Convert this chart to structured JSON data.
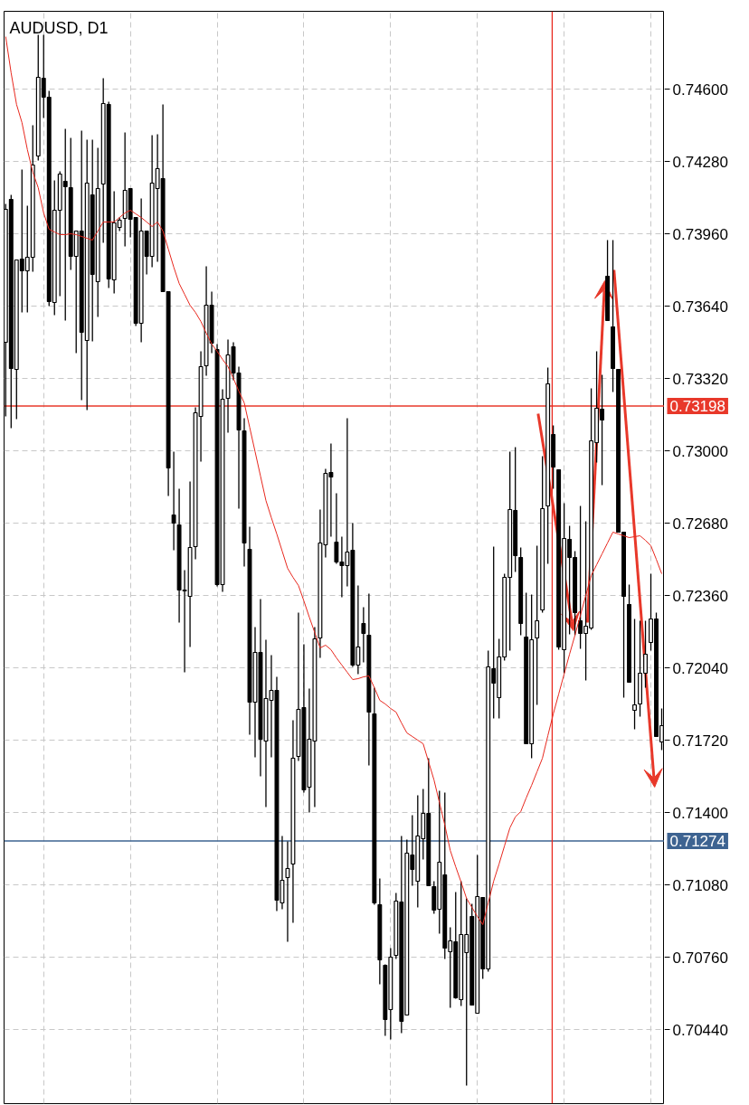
{
  "chart_data": {
    "type": "candlestick",
    "title": "AUDUSD, D1",
    "categories": [
      null,
      null,
      null,
      null,
      null,
      null,
      null,
      null,
      null,
      null,
      null,
      null,
      null,
      null,
      null,
      null,
      null,
      null,
      null,
      null,
      null,
      null,
      null,
      null,
      null,
      null,
      null,
      null,
      null,
      null,
      null,
      null,
      null,
      null,
      null,
      null,
      null,
      null,
      null,
      null,
      null,
      null,
      null,
      null,
      null,
      null,
      null,
      null,
      null,
      null,
      null,
      null,
      null,
      null,
      null,
      null,
      null,
      null,
      null,
      null,
      null,
      null,
      null,
      null,
      null,
      null,
      null,
      null,
      null,
      null,
      null,
      null,
      null,
      null,
      null,
      null,
      null,
      null,
      null,
      null,
      null,
      null,
      null,
      null,
      null,
      null,
      null,
      null,
      null,
      null,
      null,
      null,
      null,
      null,
      null,
      null,
      null,
      null,
      null,
      null,
      null,
      null,
      null,
      null,
      null,
      null,
      null,
      null,
      null,
      null,
      null,
      null,
      null,
      null,
      null,
      null,
      null,
      null,
      null,
      null,
      null,
      null
    ],
    "ohlc": [
      [
        0.7348,
        0.74092,
        0.73152,
        0.74068
      ],
      [
        0.74112,
        0.74132,
        0.731,
        0.73364
      ],
      [
        0.7336,
        0.73844,
        0.7314,
        0.73844
      ],
      [
        0.73848,
        0.74244,
        0.73612,
        0.73796
      ],
      [
        0.73796,
        0.74084,
        0.73612,
        0.73856
      ],
      [
        0.73856,
        0.7444,
        0.73792,
        0.74264
      ],
      [
        0.74304,
        0.7484,
        0.74284,
        0.74652
      ],
      [
        0.74648,
        0.7484,
        0.74472,
        0.74564
      ],
      [
        0.74564,
        0.74592,
        0.7364,
        0.7366
      ],
      [
        0.73656,
        0.74196,
        0.736,
        0.74064
      ],
      [
        0.74064,
        0.74236,
        0.73684,
        0.74224
      ],
      [
        0.74192,
        0.74424,
        0.73576,
        0.74168
      ],
      [
        0.74164,
        0.74384,
        0.738,
        0.7386
      ],
      [
        0.7386,
        0.73972,
        0.73432,
        0.73972
      ],
      [
        0.73972,
        0.74416,
        0.73224,
        0.73524
      ],
      [
        0.73488,
        0.74376,
        0.7318,
        0.74184
      ],
      [
        0.74132,
        0.74376,
        0.73484,
        0.7378
      ],
      [
        0.73748,
        0.7434,
        0.73592,
        0.7416
      ],
      [
        0.7418,
        0.74648,
        0.7392,
        0.74536
      ],
      [
        0.74532,
        0.74544,
        0.7372,
        0.7376
      ],
      [
        0.73756,
        0.74148,
        0.73696,
        0.74008
      ],
      [
        0.73988,
        0.74032,
        0.73972,
        0.7402
      ],
      [
        0.74028,
        0.74408,
        0.73904,
        0.74152
      ],
      [
        0.7416,
        0.7416,
        0.73944,
        0.74024
      ],
      [
        0.74032,
        0.74032,
        0.73552,
        0.73564
      ],
      [
        0.73564,
        0.74116,
        0.7348,
        0.73972
      ],
      [
        0.73972,
        0.73972,
        0.7378,
        0.7386
      ],
      [
        0.7386,
        0.74396,
        0.73812,
        0.74184
      ],
      [
        0.7416,
        0.744,
        0.73836,
        0.74248
      ],
      [
        0.74204,
        0.74532,
        0.73704,
        0.73704
      ],
      [
        0.73704,
        0.73704,
        0.728,
        0.72924
      ],
      [
        0.72716,
        0.72996,
        0.7256,
        0.7268
      ],
      [
        0.72672,
        0.72832,
        0.7224,
        0.72384
      ],
      [
        0.72384,
        0.72472,
        0.7202,
        0.7238
      ],
      [
        0.72356,
        0.72864,
        0.72132,
        0.72572
      ],
      [
        0.72576,
        0.73192,
        0.7252,
        0.73168
      ],
      [
        0.73152,
        0.7344,
        0.72952,
        0.73372
      ],
      [
        0.73376,
        0.73816,
        0.73332,
        0.73644
      ],
      [
        0.73644,
        0.73704,
        0.73432,
        0.73476
      ],
      [
        0.73448,
        0.73472,
        0.724,
        0.72408
      ],
      [
        0.72408,
        0.73272,
        0.72376,
        0.73228
      ],
      [
        0.73232,
        0.73492,
        0.7308,
        0.73424
      ],
      [
        0.7346,
        0.7348,
        0.73312,
        0.73344
      ],
      [
        0.73344,
        0.73372,
        0.72744,
        0.73092
      ],
      [
        0.73088,
        0.73144,
        0.72488,
        0.72592
      ],
      [
        0.72564,
        0.72664,
        0.71744,
        0.71888
      ],
      [
        0.71888,
        0.7222,
        0.71644,
        0.72108
      ],
      [
        0.72108,
        0.72344,
        0.7156,
        0.71724
      ],
      [
        0.71716,
        0.72164,
        0.71424,
        0.71904
      ],
      [
        0.71896,
        0.72096,
        0.71644,
        0.7194
      ],
      [
        0.7194,
        0.72,
        0.70964,
        0.71012
      ],
      [
        0.71,
        0.71296,
        0.70972,
        0.711
      ],
      [
        0.71112,
        0.71272,
        0.70828,
        0.71152
      ],
      [
        0.71172,
        0.71808,
        0.70912,
        0.7164
      ],
      [
        0.71648,
        0.72284,
        0.71628,
        0.71856
      ],
      [
        0.71864,
        0.72144,
        0.71488,
        0.715
      ],
      [
        0.71512,
        0.71948,
        0.714,
        0.71724
      ],
      [
        0.71716,
        0.7222,
        0.71424,
        0.72168
      ],
      [
        0.72172,
        0.7274,
        0.72084,
        0.72592
      ],
      [
        0.72584,
        0.7292,
        0.72528,
        0.729
      ],
      [
        0.72904,
        0.73032,
        0.7262,
        0.72884
      ],
      [
        0.72596,
        0.72812,
        0.725,
        0.72508
      ],
      [
        0.72508,
        0.7262,
        0.72352,
        0.72492
      ],
      [
        0.72492,
        0.73144,
        0.724,
        0.72552
      ],
      [
        0.7256,
        0.7268,
        0.72044,
        0.72052
      ],
      [
        0.72052,
        0.72404,
        0.72012,
        0.72132
      ],
      [
        0.72236,
        0.72308,
        0.72064,
        0.72192
      ],
      [
        0.72184,
        0.72368,
        0.71608,
        0.71844
      ],
      [
        0.71836,
        0.71952,
        0.70992,
        0.71
      ],
      [
        0.70992,
        0.71108,
        0.7064,
        0.70748
      ],
      [
        0.70724,
        0.70728,
        0.70412,
        0.70484
      ],
      [
        0.70528,
        0.708,
        0.70396,
        0.7076
      ],
      [
        0.70768,
        0.71044,
        0.70752,
        0.71008
      ],
      [
        0.71004,
        0.71296,
        0.70424,
        0.70476
      ],
      [
        0.70504,
        0.7128,
        0.70504,
        0.7122
      ],
      [
        0.71212,
        0.71388,
        0.71076,
        0.71148
      ],
      [
        0.71096,
        0.71476,
        0.7098,
        0.71296
      ],
      [
        0.71284,
        0.71504,
        0.71192,
        0.71396
      ],
      [
        0.71396,
        0.7164,
        0.71076,
        0.71076
      ],
      [
        0.71072,
        0.71096,
        0.70952,
        0.70968
      ],
      [
        0.70972,
        0.71496,
        0.70864,
        0.7118
      ],
      [
        0.71124,
        0.71488,
        0.70752,
        0.708
      ],
      [
        0.70784,
        0.70892,
        0.70536,
        0.70832
      ],
      [
        0.70828,
        0.71048,
        0.70576,
        0.7058
      ],
      [
        0.70572,
        0.71096,
        0.70544,
        0.7086
      ],
      [
        0.7078,
        0.7102,
        0.70192,
        0.7086
      ],
      [
        0.7094,
        0.70996,
        0.70548,
        0.70548
      ],
      [
        0.70512,
        0.71212,
        0.70512,
        0.71028
      ],
      [
        0.71024,
        0.71024,
        0.70664,
        0.70708
      ],
      [
        0.70708,
        0.72116,
        0.70696,
        0.72044
      ],
      [
        0.72036,
        0.72576,
        0.71816,
        0.71972
      ],
      [
        0.71908,
        0.72168,
        0.71816,
        0.72088
      ],
      [
        0.72088,
        0.72456,
        0.72072,
        0.7244
      ],
      [
        0.7244,
        0.72996,
        0.72116,
        0.7274
      ],
      [
        0.72736,
        0.73016,
        0.72464,
        0.72536
      ],
      [
        0.72528,
        0.72572,
        0.72184,
        0.72236
      ],
      [
        0.72176,
        0.72372,
        0.71704,
        0.71704
      ],
      [
        0.71704,
        0.72364,
        0.7164,
        0.72164
      ],
      [
        0.72172,
        0.7258,
        0.71876,
        0.72248
      ],
      [
        0.72296,
        0.72976,
        0.72284,
        0.72744
      ],
      [
        0.72756,
        0.73368,
        0.725,
        0.73296
      ],
      [
        0.73072,
        0.73112,
        0.72832,
        0.72928
      ],
      [
        0.72916,
        0.72916,
        0.7212,
        0.72132
      ],
      [
        0.7212,
        0.72768,
        0.72016,
        0.72612
      ],
      [
        0.72608,
        0.72668,
        0.72188,
        0.72528
      ],
      [
        0.72528,
        0.72556,
        0.72184,
        0.72284
      ],
      [
        0.72248,
        0.72756,
        0.72124,
        0.72192
      ],
      [
        0.72192,
        0.72688,
        0.71984,
        0.72224
      ],
      [
        0.72216,
        0.73276,
        0.72208,
        0.73044
      ],
      [
        0.73036,
        0.7344,
        0.72948,
        0.73188
      ],
      [
        0.73184,
        0.73336,
        0.72848,
        0.73136
      ],
      [
        0.73772,
        0.73932,
        0.73576,
        0.73576
      ],
      [
        0.73548,
        0.73932,
        0.7326,
        0.73364
      ],
      [
        0.7336,
        0.7336,
        0.7264,
        0.7264
      ],
      [
        0.7264,
        0.7264,
        0.71908,
        0.72356
      ],
      [
        0.7232,
        0.72408,
        0.71976,
        0.71976
      ],
      [
        0.71852,
        0.72256,
        0.71768,
        0.71876
      ],
      [
        0.7188,
        0.72248,
        0.71824,
        0.72016
      ],
      [
        0.72016,
        0.72248,
        0.71952,
        0.721
      ],
      [
        0.72152,
        0.72456,
        0.72116,
        0.72256
      ],
      [
        0.72256,
        0.72284,
        0.71736,
        0.71736
      ],
      [
        0.71712,
        0.7186,
        0.71676,
        0.71784
      ]
    ],
    "series": [
      {
        "type": "line",
        "color": "#e8281e",
        "values": [
          0.74832,
          0.74672,
          0.74532,
          0.74452,
          0.74332,
          0.74232,
          0.74164,
          0.74052,
          0.7398,
          0.73968,
          0.73956,
          0.73956,
          0.7396,
          0.73956,
          0.73948,
          0.7394,
          0.73932,
          0.73972,
          0.74012,
          0.74012,
          0.74012,
          0.74032,
          0.74052,
          0.74064,
          0.74048,
          0.74032,
          0.74012,
          0.73992,
          0.74012,
          0.73972,
          0.73892,
          0.73812,
          0.7374,
          0.73692,
          0.73644,
          0.73612,
          0.73572,
          0.7352,
          0.73472,
          0.7344,
          0.73404,
          0.73372,
          0.7332,
          0.73264,
          0.73212,
          0.73104,
          0.72996,
          0.72888,
          0.7278,
          0.72704,
          0.72632,
          0.72556,
          0.7248,
          0.7244,
          0.72404,
          0.72336,
          0.72264,
          0.72196,
          0.72128,
          0.7214,
          0.7212,
          0.72084,
          0.72052,
          0.7202,
          0.71988,
          0.71992,
          0.72,
          0.72004,
          0.71952,
          0.71896,
          0.7188,
          0.7186,
          0.71844,
          0.71796,
          0.71752,
          0.71736,
          0.7172,
          0.71704,
          0.71624,
          0.71544,
          0.71444,
          0.71344,
          0.71232,
          0.7116,
          0.71092,
          0.7102,
          0.7098,
          0.7094,
          0.70904,
          0.71,
          0.71096,
          0.71172,
          0.71252,
          0.71332,
          0.7138,
          0.71404,
          0.71464,
          0.7152,
          0.7158,
          0.7164,
          0.7174,
          0.71836,
          0.71924,
          0.72012,
          0.721,
          0.72184,
          0.72272,
          0.7236,
          0.72448,
          0.72496,
          0.72544,
          0.72592,
          0.7264,
          0.72632,
          0.72624,
          0.72616,
          0.7262,
          0.72624,
          0.72604,
          0.7258,
          0.7252,
          0.72456
        ]
      }
    ],
    "ylim": [
      0.70112,
      0.74944
    ],
    "yticks": [
      {
        "value": 0.7044,
        "label": "0.70440"
      },
      {
        "value": 0.7076,
        "label": "0.70760"
      },
      {
        "value": 0.7108,
        "label": "0.71080"
      },
      {
        "value": 0.714,
        "label": "0.71400"
      },
      {
        "value": 0.7172,
        "label": "0.71720"
      },
      {
        "value": 0.7204,
        "label": "0.72040"
      },
      {
        "value": 0.7236,
        "label": "0.72360"
      },
      {
        "value": 0.7268,
        "label": "0.72680"
      },
      {
        "value": 0.73,
        "label": "0.73000"
      },
      {
        "value": 0.7332,
        "label": "0.73320"
      },
      {
        "value": 0.7364,
        "label": "0.73640"
      },
      {
        "value": 0.7396,
        "label": "0.73960"
      },
      {
        "value": 0.7428,
        "label": "0.74280"
      },
      {
        "value": 0.746,
        "label": "0.74600"
      }
    ],
    "ref_lines": [
      {
        "axis": "y",
        "value": 0.73198,
        "label": "0.73198",
        "color": "#e8382a"
      },
      {
        "axis": "y",
        "value": 0.71274,
        "label": "0.71274",
        "color": "#3d6391"
      }
    ],
    "grid": true,
    "tick_labels": "y"
  }
}
